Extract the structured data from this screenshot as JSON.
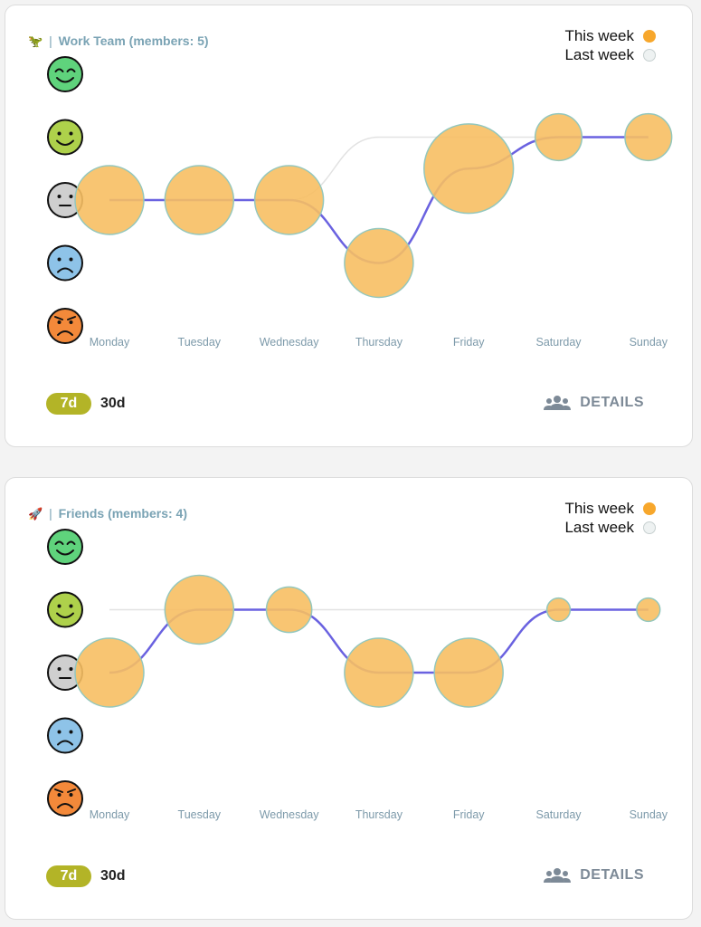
{
  "mood_axis": {
    "levels": [
      "very-happy",
      "happy",
      "neutral",
      "sad",
      "angry"
    ],
    "colors": {
      "very-happy": "#5fd37c",
      "happy": "#aed14b",
      "neutral": "#cfcfcf",
      "sad": "#8ec3e8",
      "angry": "#f3893a"
    }
  },
  "legend": {
    "this_week": "This week",
    "last_week": "Last week",
    "this_week_color": "#f7a72c",
    "last_week_color": "#eef2f2"
  },
  "colors": {
    "bubble": "#f7bf63",
    "bubble_stroke": "#93c7bd",
    "this_week_line": "#6a62e0",
    "last_week_line": "#e2e2e2",
    "active_range": "#b3b427"
  },
  "groups": [
    {
      "emoji": "🦖",
      "separator": "|",
      "title": "Work Team (members: 5)",
      "range": {
        "active": "7d",
        "inactive": "30d"
      },
      "details_label": "DETAILS",
      "chart_data": {
        "type": "bubble-line",
        "categories": [
          "Monday",
          "Tuesday",
          "Wednesday",
          "Thursday",
          "Friday",
          "Saturday",
          "Sunday"
        ],
        "y_levels": [
          "angry",
          "sad",
          "neutral",
          "happy",
          "very-happy"
        ],
        "series": [
          {
            "name": "This week",
            "mood": [
              3,
              3,
              3,
              2,
              3.5,
              4,
              4
            ],
            "bubble_size": [
              1.0,
              1.0,
              1.0,
              1.0,
              1.3,
              0.68,
              0.68
            ]
          },
          {
            "name": "Last week",
            "mood": [
              3,
              3,
              3,
              4,
              4,
              4,
              4
            ]
          }
        ]
      }
    },
    {
      "emoji": "🚀",
      "separator": "|",
      "title": "Friends (members: 4)",
      "range": {
        "active": "7d",
        "inactive": "30d"
      },
      "details_label": "DETAILS",
      "chart_data": {
        "type": "bubble-line",
        "categories": [
          "Monday",
          "Tuesday",
          "Wednesday",
          "Thursday",
          "Friday",
          "Saturday",
          "Sunday"
        ],
        "y_levels": [
          "angry",
          "sad",
          "neutral",
          "happy",
          "very-happy"
        ],
        "series": [
          {
            "name": "This week",
            "mood": [
              3,
              4,
              4,
              3,
              3,
              4,
              4
            ],
            "bubble_size": [
              1.0,
              1.0,
              0.66,
              1.0,
              1.0,
              0.34,
              0.34
            ]
          },
          {
            "name": "Last week",
            "mood": [
              4,
              4,
              4,
              4,
              4,
              4,
              4
            ]
          }
        ]
      }
    }
  ]
}
